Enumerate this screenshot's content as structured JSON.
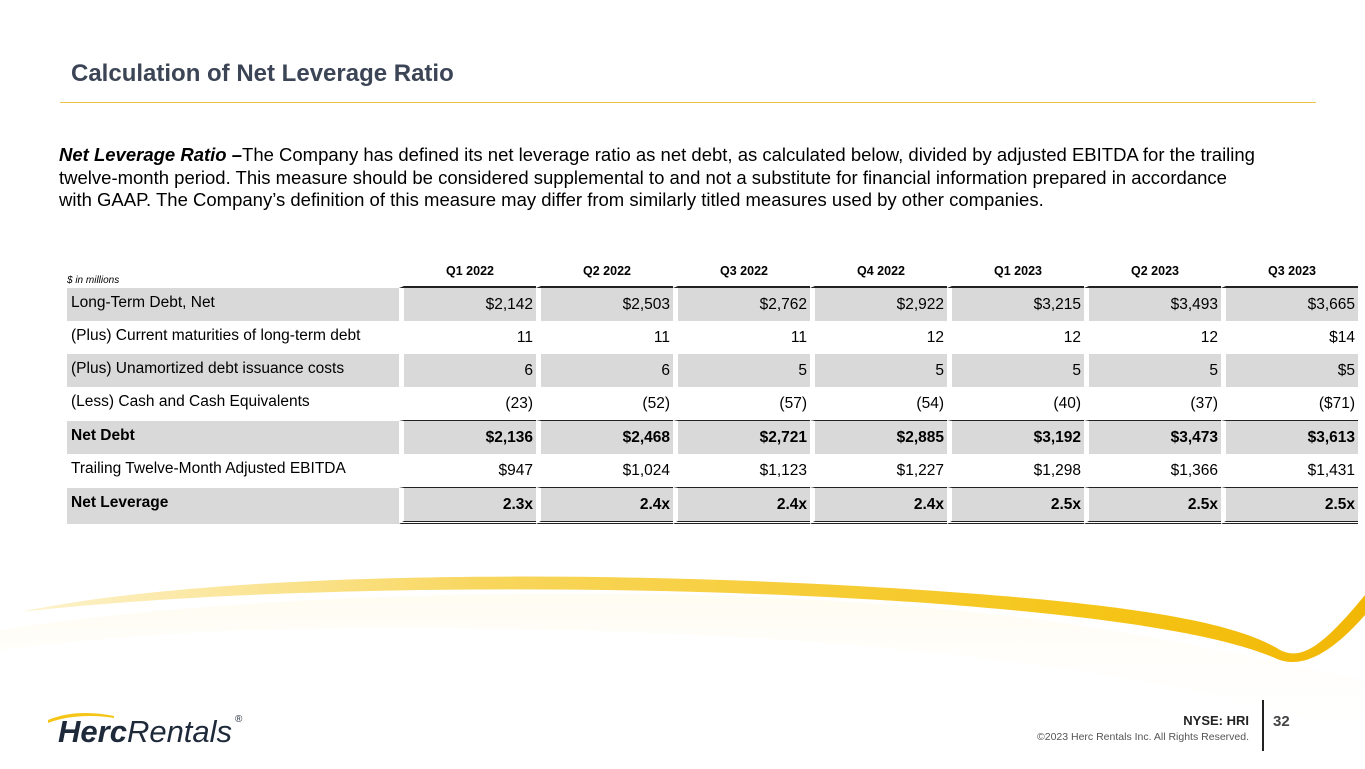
{
  "slide": {
    "title": "Calculation of Net Leverage Ratio",
    "intro_lead": "Net Leverage Ratio –",
    "intro_body": "The Company has defined its net leverage ratio as net debt, as calculated below, divided by adjusted EBITDA for the trailing twelve-month period.  This measure should be considered supplemental to and not a substitute for financial information prepared in accordance with GAAP. The Company’s definition of this measure may differ from similarly titled measures used by other companies."
  },
  "table": {
    "units_label": "$ in millions",
    "columns": [
      "Q1 2022",
      "Q2 2022",
      "Q3 2022",
      "Q4 2022",
      "Q1 2023",
      "Q2 2023",
      "Q3 2023"
    ],
    "rows": [
      {
        "label": "Long-Term Debt, Net",
        "values": [
          "$2,142",
          "$2,503",
          "$2,762",
          "$2,922",
          "$3,215",
          "$3,493",
          "$3,665"
        ]
      },
      {
        "label": "(Plus) Current maturities of long-term debt",
        "values": [
          "11",
          "11",
          "11",
          "12",
          "12",
          "12",
          "$14"
        ]
      },
      {
        "label": "(Plus) Unamortized debt issuance costs",
        "values": [
          "6",
          "6",
          "5",
          "5",
          "5",
          "5",
          "$5"
        ]
      },
      {
        "label": "(Less) Cash and Cash Equivalents",
        "values": [
          "(23)",
          "(52)",
          "(57)",
          "(54)",
          "(40)",
          "(37)",
          "($71)"
        ]
      },
      {
        "label": "Net Debt",
        "values": [
          "$2,136",
          "$2,468",
          "$2,721",
          "$2,885",
          "$3,192",
          "$3,473",
          "$3,613"
        ]
      },
      {
        "label": "Trailing Twelve-Month Adjusted EBITDA",
        "values": [
          "$947",
          "$1,024",
          "$1,123",
          "$1,227",
          "$1,298",
          "$1,366",
          "$1,431"
        ]
      },
      {
        "label": "Net Leverage",
        "values": [
          "2.3x",
          "2.4x",
          "2.4x",
          "2.4x",
          "2.5x",
          "2.5x",
          "2.5x"
        ]
      }
    ]
  },
  "footer": {
    "ticker": "NYSE: HRI",
    "copyright": "©2023 Herc Rentals Inc.  All Rights Reserved.",
    "page_number": "32",
    "logo_herc": "Herc",
    "logo_rentals": "Rentals",
    "logo_reg": "®"
  },
  "colors": {
    "title": "#3b4556",
    "accent_gold": "#f5c518",
    "shade": "#d9d9d9"
  }
}
